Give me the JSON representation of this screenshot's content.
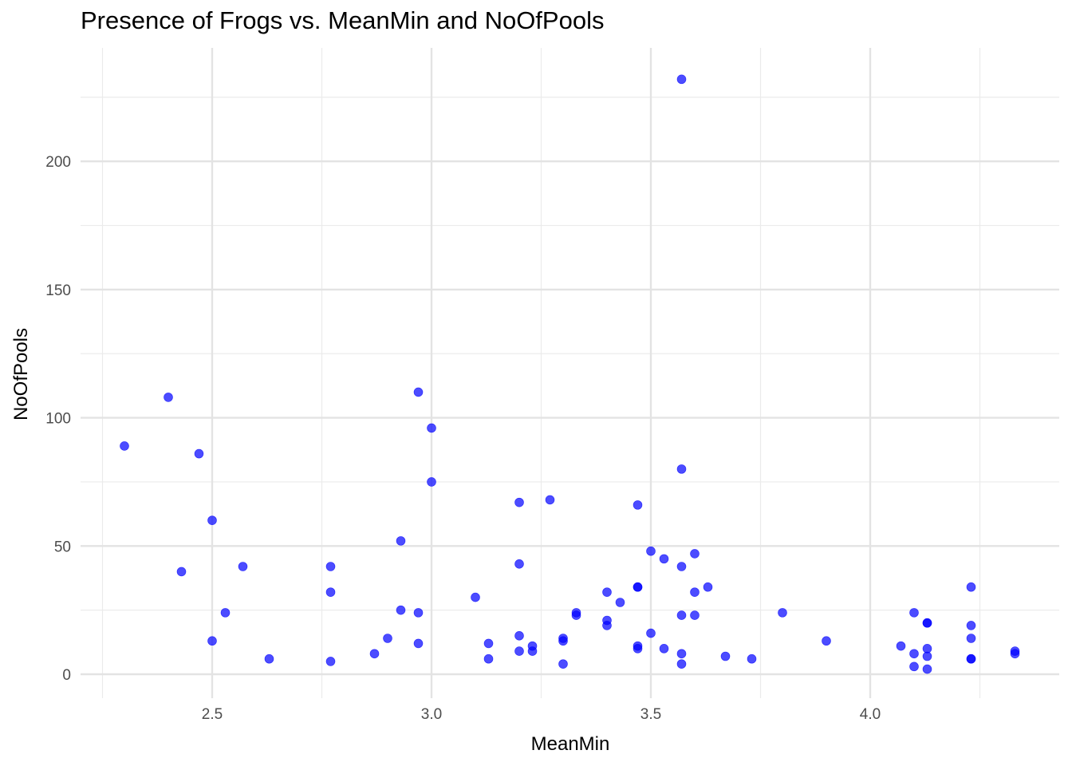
{
  "chart_data": {
    "type": "scatter",
    "title": "Presence of Frogs vs. MeanMin and NoOfPools",
    "xlabel": "MeanMin",
    "ylabel": "NoOfPools",
    "xlim": [
      2.21,
      4.34
    ],
    "ylim": [
      -9,
      230
    ],
    "xticks": [
      2.5,
      3.0,
      3.5,
      4.0
    ],
    "xtick_labels": [
      "2.5",
      "3.0",
      "3.5",
      "4.0"
    ],
    "yticks": [
      0,
      50,
      100,
      150,
      200
    ],
    "ytick_labels": [
      "0",
      "50",
      "100",
      "150",
      "200"
    ],
    "grid": true,
    "point_color": "#0000ff",
    "points": [
      [
        2.3,
        89
      ],
      [
        2.4,
        108
      ],
      [
        2.43,
        40
      ],
      [
        2.47,
        86
      ],
      [
        2.5,
        60
      ],
      [
        2.5,
        13
      ],
      [
        2.53,
        24
      ],
      [
        2.57,
        42
      ],
      [
        2.63,
        6
      ],
      [
        2.77,
        42
      ],
      [
        2.77,
        32
      ],
      [
        2.77,
        5
      ],
      [
        2.87,
        8
      ],
      [
        2.9,
        14
      ],
      [
        2.93,
        52
      ],
      [
        2.93,
        25
      ],
      [
        2.97,
        110
      ],
      [
        2.97,
        24
      ],
      [
        2.97,
        12
      ],
      [
        3.0,
        96
      ],
      [
        3.0,
        75
      ],
      [
        3.1,
        30
      ],
      [
        3.13,
        12
      ],
      [
        3.13,
        6
      ],
      [
        3.2,
        67
      ],
      [
        3.2,
        43
      ],
      [
        3.2,
        15
      ],
      [
        3.2,
        9
      ],
      [
        3.23,
        11
      ],
      [
        3.23,
        9
      ],
      [
        3.27,
        68
      ],
      [
        3.3,
        14
      ],
      [
        3.3,
        13
      ],
      [
        3.3,
        4
      ],
      [
        3.33,
        24
      ],
      [
        3.33,
        23
      ],
      [
        3.4,
        32
      ],
      [
        3.4,
        21
      ],
      [
        3.4,
        19
      ],
      [
        3.43,
        28
      ],
      [
        3.47,
        66
      ],
      [
        3.47,
        34
      ],
      [
        3.47,
        34
      ],
      [
        3.47,
        11
      ],
      [
        3.47,
        10
      ],
      [
        3.5,
        48
      ],
      [
        3.5,
        16
      ],
      [
        3.53,
        45
      ],
      [
        3.53,
        10
      ],
      [
        3.57,
        232
      ],
      [
        3.57,
        80
      ],
      [
        3.57,
        42
      ],
      [
        3.57,
        23
      ],
      [
        3.57,
        8
      ],
      [
        3.57,
        4
      ],
      [
        3.6,
        47
      ],
      [
        3.6,
        32
      ],
      [
        3.6,
        23
      ],
      [
        3.63,
        34
      ],
      [
        3.67,
        7
      ],
      [
        3.73,
        6
      ],
      [
        3.8,
        24
      ],
      [
        3.9,
        13
      ],
      [
        4.07,
        11
      ],
      [
        4.1,
        24
      ],
      [
        4.1,
        8
      ],
      [
        4.1,
        3
      ],
      [
        4.13,
        20
      ],
      [
        4.13,
        20
      ],
      [
        4.13,
        10
      ],
      [
        4.13,
        7
      ],
      [
        4.13,
        2
      ],
      [
        4.23,
        34
      ],
      [
        4.23,
        19
      ],
      [
        4.23,
        14
      ],
      [
        4.23,
        6
      ],
      [
        4.23,
        6
      ],
      [
        4.33,
        9
      ],
      [
        4.33,
        8
      ]
    ]
  }
}
